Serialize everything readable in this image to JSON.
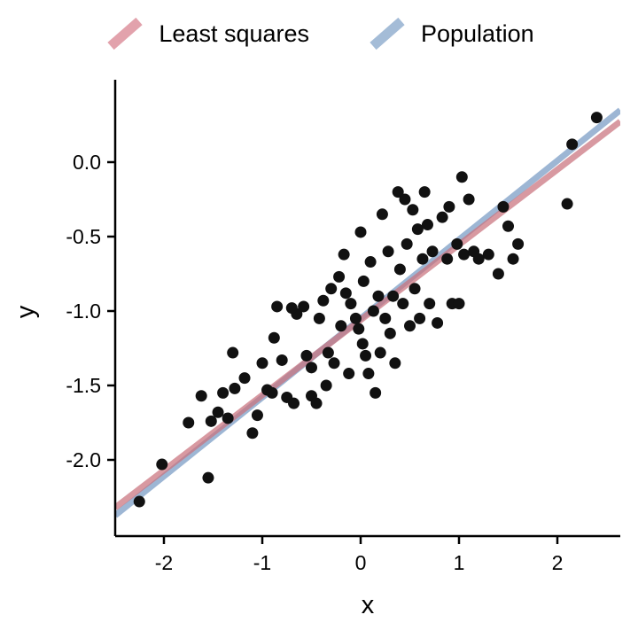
{
  "legend": {
    "items": [
      {
        "label": "Least squares",
        "color": "#E2A2AC"
      },
      {
        "label": "Population",
        "color": "#A4BCD7"
      }
    ]
  },
  "chart_data": {
    "type": "scatter",
    "title": "",
    "xlabel": "x",
    "ylabel": "y",
    "xlim": [
      -2.5,
      2.65
    ],
    "ylim": [
      -2.51,
      0.49
    ],
    "x_ticks": [
      -2,
      -1,
      0,
      1,
      2
    ],
    "x_tick_labels": [
      "-2",
      "-1",
      "0",
      "1",
      "2"
    ],
    "y_ticks": [
      0.0,
      -0.5,
      -1.0,
      -1.5,
      -2.0
    ],
    "y_tick_labels": [
      "0.0",
      "-0.5",
      "-1.0",
      "-1.5",
      "-2.0"
    ],
    "grid": false,
    "legend_position": "top",
    "point_color": "#111111",
    "lines": [
      {
        "name": "Population",
        "slope": 0.53,
        "intercept": -1.05,
        "color": "#92AECF",
        "opacity": 0.9,
        "width": 7
      },
      {
        "name": "Least squares",
        "slope": 0.505,
        "intercept": -1.06,
        "color": "#C9717D",
        "opacity": 0.72,
        "width": 7
      }
    ],
    "points": [
      [
        -2.25,
        -2.28
      ],
      [
        -2.02,
        -2.03
      ],
      [
        -1.55,
        -2.12
      ],
      [
        -1.52,
        -1.74
      ],
      [
        -1.45,
        -1.68
      ],
      [
        -1.3,
        -1.28
      ],
      [
        -1.28,
        -1.52
      ],
      [
        -1.18,
        -1.45
      ],
      [
        -1.1,
        -1.82
      ],
      [
        -1.05,
        -1.7
      ],
      [
        -0.95,
        -1.53
      ],
      [
        -0.9,
        -1.55
      ],
      [
        -0.85,
        -0.97
      ],
      [
        -0.8,
        -1.33
      ],
      [
        -0.75,
        -1.58
      ],
      [
        -0.68,
        -1.62
      ],
      [
        -0.65,
        -1.02
      ],
      [
        -0.58,
        -0.97
      ],
      [
        -0.55,
        -1.3
      ],
      [
        -0.5,
        -1.38
      ],
      [
        -0.5,
        -1.57
      ],
      [
        -0.45,
        -1.62
      ],
      [
        -0.42,
        -1.05
      ],
      [
        -0.38,
        -0.93
      ],
      [
        -0.33,
        -1.28
      ],
      [
        -0.3,
        -0.85
      ],
      [
        -0.27,
        -1.35
      ],
      [
        -0.22,
        -0.77
      ],
      [
        -0.2,
        -1.1
      ],
      [
        -0.17,
        -0.62
      ],
      [
        -0.12,
        -1.42
      ],
      [
        -0.1,
        -0.95
      ],
      [
        -0.05,
        -1.05
      ],
      [
        -0.02,
        -1.12
      ],
      [
        0.0,
        -0.47
      ],
      [
        0.03,
        -0.8
      ],
      [
        0.05,
        -1.3
      ],
      [
        0.08,
        -1.42
      ],
      [
        0.1,
        -0.67
      ],
      [
        0.13,
        -1.0
      ],
      [
        0.15,
        -1.55
      ],
      [
        0.18,
        -0.9
      ],
      [
        0.22,
        -0.35
      ],
      [
        0.25,
        -1.05
      ],
      [
        0.28,
        -0.6
      ],
      [
        0.3,
        -1.15
      ],
      [
        0.33,
        -0.9
      ],
      [
        0.38,
        -0.2
      ],
      [
        0.4,
        -0.72
      ],
      [
        0.43,
        -0.95
      ],
      [
        0.47,
        -0.55
      ],
      [
        0.5,
        -1.1
      ],
      [
        0.53,
        -0.32
      ],
      [
        0.55,
        -0.85
      ],
      [
        0.58,
        -0.45
      ],
      [
        0.6,
        -1.05
      ],
      [
        0.63,
        -0.65
      ],
      [
        0.68,
        -0.42
      ],
      [
        0.7,
        -0.95
      ],
      [
        0.73,
        -0.6
      ],
      [
        0.78,
        -1.08
      ],
      [
        0.83,
        -0.37
      ],
      [
        0.88,
        -0.65
      ],
      [
        0.93,
        -0.95
      ],
      [
        0.98,
        -0.55
      ],
      [
        1.03,
        -0.1
      ],
      [
        1.05,
        -0.62
      ],
      [
        1.1,
        -0.25
      ],
      [
        1.15,
        -0.6
      ],
      [
        1.2,
        -0.65
      ],
      [
        1.3,
        -0.62
      ],
      [
        1.4,
        -0.75
      ],
      [
        1.45,
        -0.3
      ],
      [
        1.5,
        -0.43
      ],
      [
        1.55,
        -0.65
      ],
      [
        1.6,
        -0.55
      ],
      [
        2.1,
        -0.28
      ],
      [
        2.15,
        0.12
      ],
      [
        2.4,
        0.3
      ],
      [
        -1.62,
        -1.57
      ],
      [
        -0.88,
        -1.18
      ],
      [
        -0.35,
        -1.5
      ],
      [
        0.2,
        -1.28
      ],
      [
        0.45,
        -0.25
      ],
      [
        0.65,
        -0.2
      ],
      [
        -0.7,
        -0.98
      ],
      [
        -1.4,
        -1.55
      ],
      [
        0.35,
        -1.35
      ],
      [
        0.9,
        -0.3
      ],
      [
        1.0,
        -0.95
      ],
      [
        -0.15,
        -0.88
      ],
      [
        0.02,
        -1.22
      ],
      [
        -1.0,
        -1.35
      ],
      [
        -1.75,
        -1.75
      ],
      [
        -1.35,
        -1.72
      ]
    ]
  }
}
